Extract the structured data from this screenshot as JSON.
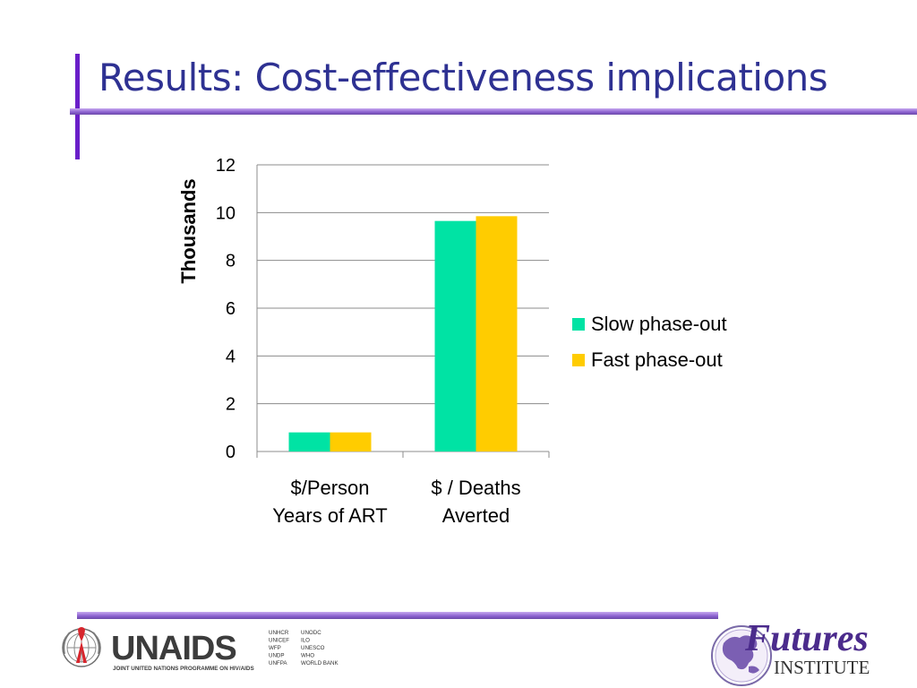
{
  "slide": {
    "title": "Results: Cost-effectiveness implications"
  },
  "chart_data": {
    "type": "bar",
    "categories": [
      "$/Person\nYears of ART",
      "$ / Deaths\nAverted"
    ],
    "series": [
      {
        "name": "Slow phase-out",
        "color": "#00e3a4",
        "values": [
          0.8,
          9.65
        ]
      },
      {
        "name": "Fast phase-out",
        "color": "#ffcc00",
        "values": [
          0.8,
          9.85
        ]
      }
    ],
    "ylabel": "Thousands",
    "ylim": [
      0,
      12
    ],
    "yticks": [
      0,
      2,
      4,
      6,
      8,
      10,
      12
    ],
    "grid": true,
    "legend_position": "right"
  },
  "footer": {
    "unaids_wordmark": "UNAIDS",
    "unaids_tagline": "JOINT UNITED NATIONS PROGRAMME ON HIV/AIDS",
    "unaids_cosponsors_col1": [
      "UNHCR",
      "UNICEF",
      "WFP",
      "UNDP",
      "UNFPA"
    ],
    "unaids_cosponsors_col2": [
      "UNODC",
      "ILO",
      "UNESCO",
      "WHO",
      "WORLD BANK"
    ],
    "futures_name": "Futures",
    "futures_sub": "INSTITUTE"
  }
}
